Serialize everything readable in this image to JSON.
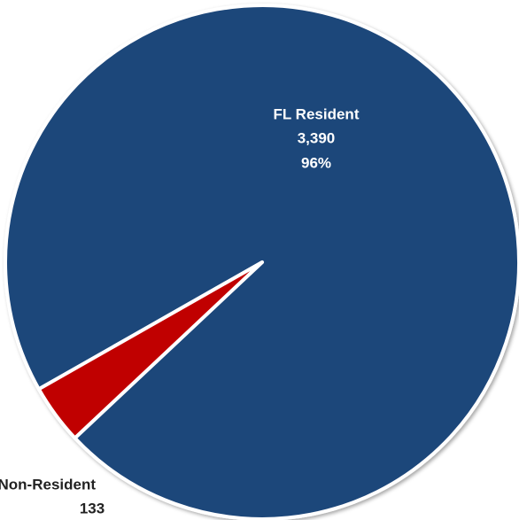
{
  "chart_data": {
    "type": "pie",
    "categories": [
      "FL Resident",
      "Non-Resident"
    ],
    "values": [
      3390,
      133
    ],
    "value_labels": [
      "3,390",
      "133"
    ],
    "percent_labels": [
      "96%",
      null
    ],
    "colors": [
      "#1f467a",
      "#c00000"
    ]
  }
}
